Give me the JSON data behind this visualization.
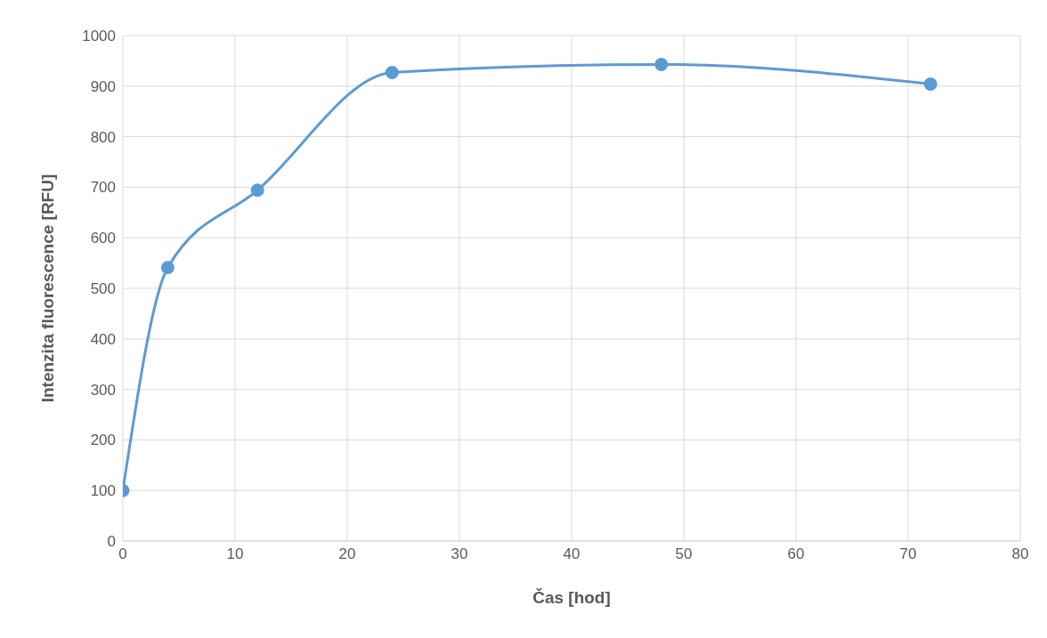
{
  "chart_data": {
    "type": "line",
    "xlabel": "Čas [hod]",
    "ylabel": "Intenzita fluorescence [RFU]",
    "series": [
      {
        "color": "#5b9bd5",
        "x": [
          0,
          4,
          12,
          24,
          48,
          72
        ],
        "values": [
          100,
          541,
          694,
          927,
          943,
          904
        ]
      }
    ],
    "xlim": [
      0,
      80
    ],
    "xticks": [
      0,
      10,
      20,
      30,
      40,
      50,
      60,
      70,
      80
    ],
    "ylim": [
      0,
      1000
    ],
    "yticks": [
      0,
      100,
      200,
      300,
      400,
      500,
      600,
      700,
      800,
      900,
      1000
    ],
    "grid": true,
    "marker": "circle",
    "line_style": "solid"
  }
}
